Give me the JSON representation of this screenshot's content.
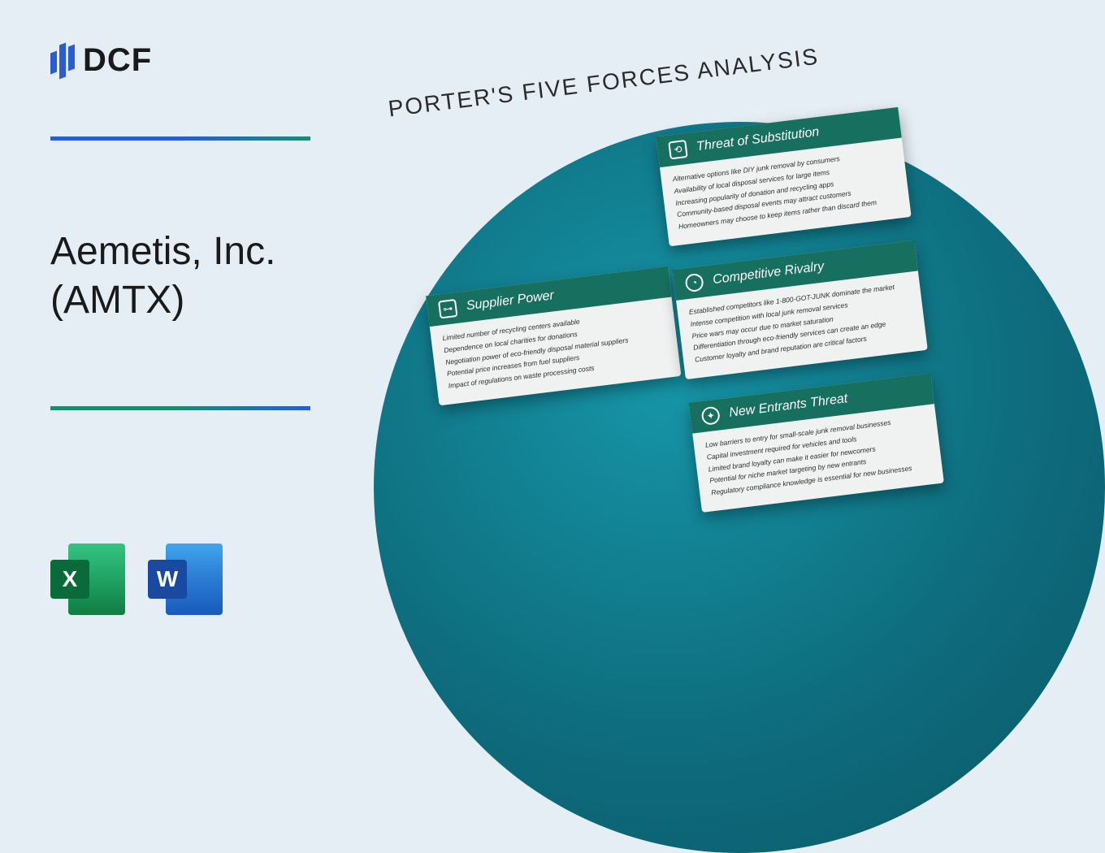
{
  "brand": {
    "name": "DCF"
  },
  "company": {
    "line1": "Aemetis, Inc.",
    "line2": "(AMTX)"
  },
  "file_icons": {
    "excel_letter": "X",
    "word_letter": "W"
  },
  "analysis": {
    "title": "PORTER'S FIVE FORCES ANALYSIS",
    "colors": {
      "card_header_bg": "#17705f",
      "circle_gradient_from": "#1696a8",
      "circle_gradient_to": "#0a5765",
      "page_bg": "#e4eef4"
    },
    "cards": {
      "substitution": {
        "title": "Threat of Substitution",
        "points": [
          "Alternative options like DIY junk removal by consumers",
          "Availability of local disposal services for large items",
          "Increasing popularity of donation and recycling apps",
          "Community-based disposal events may attract customers",
          "Homeowners may choose to keep items rather than discard them"
        ]
      },
      "supplier": {
        "title": "Supplier Power",
        "points": [
          "Limited number of recycling centers available",
          "Dependence on local charities for donations",
          "Negotiation power of eco-friendly disposal material suppliers",
          "Potential price increases from fuel suppliers",
          "Impact of regulations on waste processing costs"
        ]
      },
      "rivalry": {
        "title": "Competitive Rivalry",
        "points": [
          "Established competitors like 1-800-GOT-JUNK dominate the market",
          "Intense competition with local junk removal services",
          "Price wars may occur due to market saturation",
          "Differentiation through eco-friendly services can create an edge",
          "Customer loyalty and brand reputation are critical factors"
        ]
      },
      "entrants": {
        "title": "New Entrants Threat",
        "points": [
          "Low barriers to entry for small-scale junk removal businesses",
          "Capital investment required for vehicles and tools",
          "Limited brand loyalty can make it easier for newcomers",
          "Potential for niche market targeting by new entrants",
          "Regulatory compliance knowledge is essential for new businesses"
        ]
      }
    }
  }
}
